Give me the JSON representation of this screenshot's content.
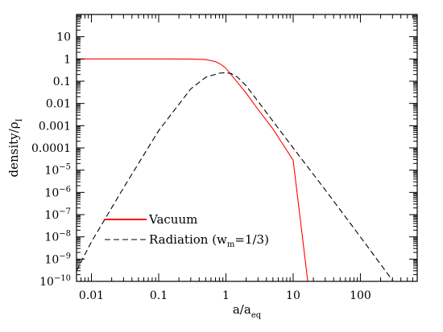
{
  "chart_data": {
    "type": "line",
    "xscale": "log",
    "yscale": "log",
    "xlim": [
      0.006,
      700
    ],
    "ylim": [
      1e-10,
      100
    ],
    "xlabel": {
      "base": "a/a",
      "sub": "eq"
    },
    "ylabel": {
      "base": "density/ρ",
      "sub": "I"
    },
    "x_ticks": [
      {
        "value": 0.01,
        "label": "0.01"
      },
      {
        "value": 0.1,
        "label": "0.1"
      },
      {
        "value": 1,
        "label": "1"
      },
      {
        "value": 10,
        "label": "10"
      },
      {
        "value": 100,
        "label": "100"
      }
    ],
    "y_ticks": [
      {
        "value": 10,
        "label": "10"
      },
      {
        "value": 1,
        "label": "1"
      },
      {
        "value": 0.1,
        "label": "0.1"
      },
      {
        "value": 0.01,
        "label": "0.01"
      },
      {
        "value": 0.001,
        "label": "0.001"
      },
      {
        "value": 0.0001,
        "label": "0.0001"
      },
      {
        "value": 1e-05,
        "base": "10",
        "exp": "−5"
      },
      {
        "value": 1e-06,
        "base": "10",
        "exp": "−6"
      },
      {
        "value": 1e-07,
        "base": "10",
        "exp": "−7"
      },
      {
        "value": 1e-08,
        "base": "10",
        "exp": "−8"
      },
      {
        "value": 1e-09,
        "base": "10",
        "exp": "−9"
      },
      {
        "value": 1e-10,
        "base": "10",
        "exp": "−10"
      }
    ],
    "series": [
      {
        "name": "Vacuum",
        "color": "#ff0000",
        "dash": "solid",
        "x": [
          0.006,
          0.01,
          0.1,
          0.3,
          0.5,
          0.7,
          0.85,
          1,
          1.5,
          2,
          3,
          5,
          10,
          16.5
        ],
        "y": [
          1,
          1,
          1,
          0.99,
          0.94,
          0.76,
          0.56,
          0.38,
          0.085,
          0.029,
          0.0054,
          0.00072,
          2.8e-05,
          1e-10
        ]
      },
      {
        "name": "Radiation (w_m=1/3)",
        "legend": {
          "base": "Radiation (w",
          "sub": "m",
          "rest": "=1/3)"
        },
        "color": "#000000",
        "dash": "dashed",
        "x": [
          0.006,
          0.01,
          0.03,
          0.1,
          0.3,
          0.5,
          0.8,
          1,
          1.2,
          1.5,
          2,
          3,
          5,
          10,
          30,
          100,
          300
        ],
        "y": [
          3e-10,
          6e-09,
          1.6e-06,
          0.0006,
          0.045,
          0.15,
          0.23,
          0.24,
          0.22,
          0.15,
          0.062,
          0.0125,
          0.0016,
          0.0001,
          1.3e-06,
          1e-08,
          1.1e-10
        ]
      }
    ],
    "grid": false,
    "legend_position": "bottom-left"
  }
}
